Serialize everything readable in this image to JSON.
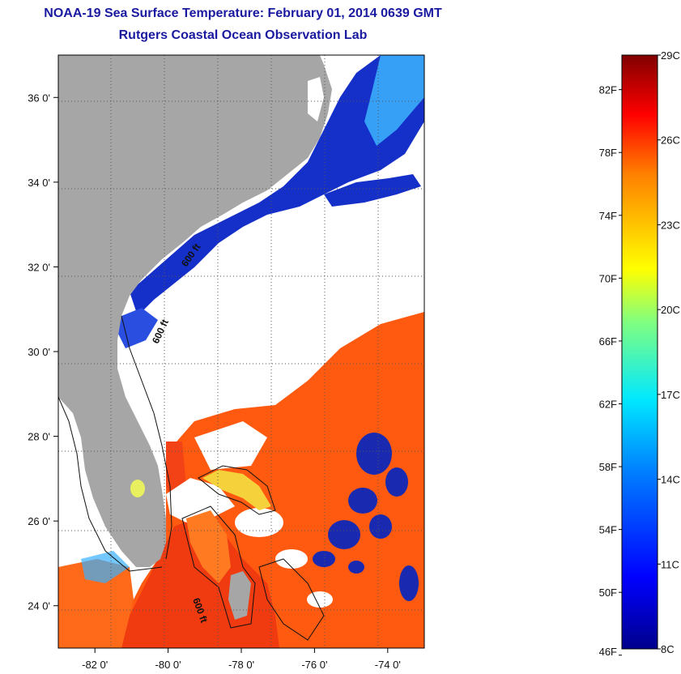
{
  "header": {
    "title": "NOAA-19 Sea Surface Temperature:  February 01, 2014 0639 GMT",
    "subtitle": "Rutgers Coastal Ocean Observation Lab"
  },
  "map": {
    "lon_range": [
      -83,
      -73
    ],
    "lat_range": [
      23,
      37
    ],
    "lon_ticks": [
      {
        "value": -82,
        "label": "-82 0'"
      },
      {
        "value": -80,
        "label": "-80 0'"
      },
      {
        "value": -78,
        "label": "-78 0'"
      },
      {
        "value": -76,
        "label": "-76 0'"
      },
      {
        "value": -74,
        "label": "-74 0'"
      }
    ],
    "lat_ticks": [
      {
        "value": 36,
        "label": "36 0'"
      },
      {
        "value": 34,
        "label": "34 0'"
      },
      {
        "value": 32,
        "label": "32 0'"
      },
      {
        "value": 30,
        "label": "30 0'"
      },
      {
        "value": 28,
        "label": "28 0'"
      },
      {
        "value": 26,
        "label": "26 0'"
      },
      {
        "value": 24,
        "label": "24 0'"
      }
    ],
    "contour_labels": [
      "600 ft",
      "600 ft",
      "600 ft"
    ],
    "colors": {
      "land": "#a6a6a6",
      "cloud": "#ffffff",
      "warm": "#ff5a10",
      "hot": "#f03a10",
      "cold": "#1530c8",
      "mid": "#3cb4ff"
    }
  },
  "colorbar": {
    "range_c": [
      8,
      29
    ],
    "celsius_labels": [
      {
        "value": 29,
        "label": "29C"
      },
      {
        "value": 26,
        "label": "26C"
      },
      {
        "value": 23,
        "label": "23C"
      },
      {
        "value": 20,
        "label": "20C"
      },
      {
        "value": 17,
        "label": "17C"
      },
      {
        "value": 14,
        "label": "14C"
      },
      {
        "value": 11,
        "label": "11C"
      },
      {
        "value": 8,
        "label": "8C"
      }
    ],
    "fahrenheit_labels": [
      {
        "value": 82,
        "label": "82F"
      },
      {
        "value": 78,
        "label": "78F"
      },
      {
        "value": 74,
        "label": "74F"
      },
      {
        "value": 70,
        "label": "70F"
      },
      {
        "value": 66,
        "label": "66F"
      },
      {
        "value": 62,
        "label": "62F"
      },
      {
        "value": 58,
        "label": "58F"
      },
      {
        "value": 54,
        "label": "54F"
      },
      {
        "value": 50,
        "label": "50F"
      },
      {
        "value": 46,
        "label": "46F"
      }
    ]
  }
}
